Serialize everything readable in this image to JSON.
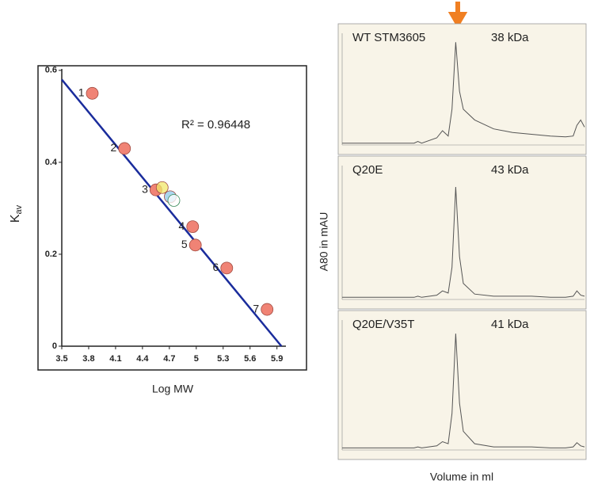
{
  "chart_data": [
    {
      "type": "scatter",
      "xlabel": "Log MW",
      "ylabel": "K",
      "ylabel_sub": "av",
      "annotation": "R² = 0.96448",
      "xlim": [
        3.5,
        6.0
      ],
      "ylim": [
        0,
        0.61
      ],
      "xticks": [
        3.5,
        3.8,
        4.1,
        4.4,
        4.7,
        5,
        5.3,
        5.6,
        5.9
      ],
      "yticks": [
        0,
        0.2,
        0.4,
        0.6
      ],
      "fit": {
        "color": "#1a2c9c",
        "x": [
          3.5,
          5.95
        ],
        "values": [
          0.58,
          0
        ]
      },
      "series": [
        {
          "color": "#f08375",
          "labels": [
            "1",
            "2",
            "3",
            "4",
            "5",
            "6",
            "7"
          ],
          "x": [
            3.84,
            4.2,
            4.55,
            4.96,
            4.99,
            5.34,
            5.79
          ],
          "values": [
            0.55,
            0.43,
            0.34,
            0.26,
            0.22,
            0.17,
            0.08
          ]
        },
        {
          "color": "#f2e86a",
          "x": [
            4.62
          ],
          "values": [
            0.345
          ]
        },
        {
          "color": "#8ec8e8",
          "x": [
            4.71
          ],
          "values": [
            0.325
          ]
        },
        {
          "color": "#ffffff",
          "x": [
            4.75
          ],
          "values": [
            0.317
          ]
        }
      ]
    },
    {
      "type": "line",
      "title": "WT STM3605",
      "annotation": "38 kDa",
      "xlim": [
        0,
        12.8
      ],
      "ylim": [
        0,
        125
      ],
      "x": [
        0,
        1,
        2,
        3,
        3.8,
        4,
        4.2,
        5,
        5.3,
        5.6,
        5.8,
        6,
        6.2,
        6.4,
        7,
        8,
        9,
        10,
        11,
        11.8,
        12.2,
        12.4,
        12.6,
        12.8
      ],
      "series": [
        {
          "color": "#555555",
          "values": [
            2,
            2,
            2,
            2,
            2,
            4,
            2,
            8,
            16,
            10,
            40,
            115,
            60,
            40,
            28,
            18,
            14,
            12,
            10,
            9,
            10,
            22,
            28,
            20
          ]
        }
      ]
    },
    {
      "type": "line",
      "title": "Q20E",
      "annotation": "43 kDa",
      "ylabel": "A80 in mAU",
      "xlim": [
        0,
        12.8
      ],
      "ylim": [
        0,
        125
      ],
      "x": [
        0,
        1,
        2,
        3,
        3.8,
        4,
        4.2,
        5,
        5.3,
        5.6,
        5.8,
        6,
        6.2,
        6.4,
        7,
        8,
        9,
        10,
        11,
        11.8,
        12.2,
        12.4,
        12.6,
        12.8
      ],
      "series": [
        {
          "color": "#555555",
          "values": [
            2,
            2,
            2,
            2,
            2,
            3,
            2,
            4,
            8,
            6,
            30,
            105,
            40,
            15,
            5,
            3,
            3,
            3,
            2,
            2,
            3,
            8,
            4,
            3
          ]
        }
      ]
    },
    {
      "type": "line",
      "title": "Q20E/V35T",
      "annotation": "41 kDa",
      "xlabel": "Volume in ml",
      "xlim": [
        0,
        12.8
      ],
      "ylim": [
        0,
        125
      ],
      "x": [
        0,
        1,
        2,
        3,
        3.8,
        4,
        4.2,
        5,
        5.3,
        5.6,
        5.8,
        6,
        6.2,
        6.4,
        7,
        8,
        9,
        10,
        11,
        11.8,
        12.2,
        12.4,
        12.6,
        12.8
      ],
      "series": [
        {
          "color": "#555555",
          "values": [
            2,
            2,
            2,
            2,
            2,
            3,
            2,
            4,
            8,
            6,
            35,
            112,
            45,
            18,
            6,
            3,
            3,
            3,
            2,
            2,
            3,
            7,
            4,
            3
          ]
        }
      ]
    }
  ]
}
